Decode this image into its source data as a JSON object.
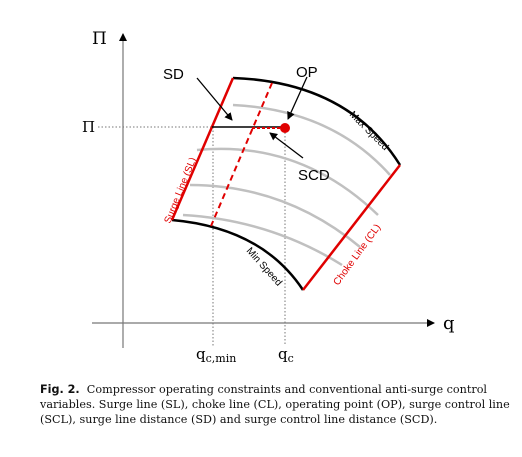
{
  "figure": {
    "y_axis_label": "Π",
    "x_axis_label": "q",
    "pi_level_label": "Π",
    "q_c_min_label": "q",
    "q_c_min_sub": "c,min",
    "q_c_label": "q",
    "q_c_sub": "c",
    "sd_label": "SD",
    "op_label": "OP",
    "scd_label": "SCD",
    "max_speed_label": "Max Speed",
    "min_speed_label": "Min Speed",
    "surge_line_label": "Surge Line (SL)",
    "choke_line_label": "Choke Line (CL)",
    "colors": {
      "constraint": "#e00000",
      "speed_lines": "#c0c0c0",
      "axes": "#000000"
    }
  },
  "caption": {
    "label": "Fig. 2.",
    "text": "Compressor operating constraints and conventional anti-surge control variables. Surge line (SL), choke line (CL), operating point (OP), surge control line (SCL), surge line distance (SD) and surge control line distance (SCD)."
  }
}
